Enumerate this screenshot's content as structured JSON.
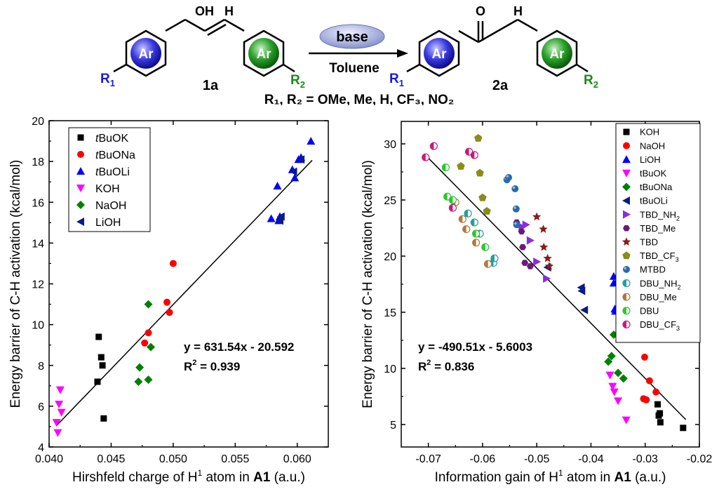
{
  "scheme": {
    "reactant_label": "1a",
    "product_label": "2a",
    "oh_label": "OH",
    "o_label": "O",
    "h_label_left": "H",
    "h_label_right": "H",
    "ring_label": "Ar",
    "r1": "R",
    "r1_sub": "1",
    "r2": "R",
    "r2_sub": "2",
    "base_label": "base",
    "solvent_label": "Toluene",
    "substituents": "R₁, R₂ = OMe, Me, H, CF₃, NO₂",
    "colors": {
      "ring_left": "#2e2edc",
      "ring_right": "#2e9a2e",
      "base_ellipse": "#9aa4d6",
      "r1": "#1a1adc",
      "r2": "#1a8a1a"
    }
  },
  "chart_data": [
    {
      "type": "scatter",
      "xlabel_main": "Hirshfeld charge of H",
      "xlabel_sup": "1",
      "xlabel_mid": " atom in ",
      "xlabel_bold": "A1",
      "xlabel_unit": " (a.u.)",
      "ylabel": "Energy barrier of C-H activation (kcal/mol)",
      "xlim": [
        0.04,
        0.0625
      ],
      "ylim": [
        4,
        20
      ],
      "xticks": [
        0.04,
        0.045,
        0.05,
        0.055,
        0.06
      ],
      "xtick_labels": [
        "0.040",
        "0.045",
        "0.050",
        "0.055",
        "0.060"
      ],
      "yticks": [
        4,
        6,
        8,
        10,
        12,
        14,
        16,
        18,
        20
      ],
      "equation": "y = 631.54x - 20.592",
      "r2_label": "R",
      "r2_value": " = 0.939",
      "fit": {
        "slope": 631.54,
        "intercept": -20.592,
        "x_range": [
          0.0406,
          0.0612
        ]
      },
      "legend_position": "top-left",
      "series": [
        {
          "name": "tBuOK",
          "label_italic": "t",
          "label_rest": "BuOK",
          "marker": "square",
          "color": "#000000",
          "points": [
            [
              0.0439,
              7.2
            ],
            [
              0.044,
              9.4
            ],
            [
              0.0442,
              8.4
            ],
            [
              0.0443,
              8.0
            ],
            [
              0.0444,
              5.4
            ]
          ]
        },
        {
          "name": "tBuONa",
          "label_italic": "t",
          "label_rest": "BuONa",
          "marker": "circle",
          "color": "#ff0000",
          "points": [
            [
              0.0477,
              9.1
            ],
            [
              0.048,
              9.6
            ],
            [
              0.0495,
              11.1
            ],
            [
              0.0497,
              10.6
            ],
            [
              0.05,
              13.0
            ]
          ]
        },
        {
          "name": "tBuOLi",
          "label_italic": "t",
          "label_rest": "BuOLi",
          "marker": "triangle-up",
          "color": "#0000ff",
          "points": [
            [
              0.0579,
              15.2
            ],
            [
              0.0584,
              16.8
            ],
            [
              0.0585,
              15.1
            ],
            [
              0.0586,
              15.3
            ],
            [
              0.0596,
              17.6
            ],
            [
              0.0598,
              17.2
            ],
            [
              0.0601,
              18.1
            ],
            [
              0.0603,
              18.2
            ],
            [
              0.0611,
              19.0
            ]
          ]
        },
        {
          "name": "KOH",
          "label_italic": "",
          "label_rest": "KOH",
          "marker": "triangle-down",
          "color": "#ff00ff",
          "points": [
            [
              0.0406,
              5.2
            ],
            [
              0.0407,
              4.7
            ],
            [
              0.0408,
              6.1
            ],
            [
              0.0409,
              6.8
            ],
            [
              0.041,
              5.7
            ]
          ]
        },
        {
          "name": "NaOH",
          "label_italic": "",
          "label_rest": "NaOH",
          "marker": "diamond",
          "color": "#008000",
          "points": [
            [
              0.0472,
              7.2
            ],
            [
              0.0473,
              7.9
            ],
            [
              0.048,
              7.3
            ],
            [
              0.048,
              11.0
            ],
            [
              0.0482,
              8.9
            ]
          ]
        },
        {
          "name": "LiOH",
          "label_italic": "",
          "label_rest": "LiOH",
          "marker": "triangle-left",
          "color": "#0a1a8c",
          "points": [
            [
              0.0586,
              15.1
            ],
            [
              0.0587,
              15.3
            ],
            [
              0.0597,
              17.5
            ],
            [
              0.0603,
              18.1
            ]
          ]
        }
      ]
    },
    {
      "type": "scatter",
      "xlabel_main": "Information gain of H",
      "xlabel_sup": "1",
      "xlabel_mid": " atom in ",
      "xlabel_bold": "A1",
      "xlabel_unit": " (a.u.)",
      "ylabel": "Energy barrier of C-H activation (kcal/mol)",
      "xlim": [
        -0.075,
        -0.02
      ],
      "ylim": [
        3,
        32
      ],
      "xticks": [
        -0.07,
        -0.06,
        -0.05,
        -0.04,
        -0.03,
        -0.02
      ],
      "xtick_labels": [
        "-0.07",
        "-0.06",
        "-0.05",
        "-0.04",
        "-0.03",
        "-0.02"
      ],
      "yticks": [
        5,
        10,
        15,
        20,
        25,
        30
      ],
      "equation": "y = -490.51x - 5.6003",
      "r2_label": "R",
      "r2_value": " = 0.836",
      "fit": {
        "slope": -490.51,
        "intercept": -5.6003,
        "x_range": [
          -0.0705,
          -0.0225
        ]
      },
      "legend_position": "top-right",
      "series": [
        {
          "name": "KOH",
          "label_main": "KOH",
          "label_sub": "",
          "marker": "square",
          "color": "#000000",
          "points": [
            [
              -0.0277,
              6.8
            ],
            [
              -0.0275,
              5.8
            ],
            [
              -0.0273,
              6.0
            ],
            [
              -0.0272,
              5.2
            ],
            [
              -0.023,
              4.7
            ]
          ]
        },
        {
          "name": "NaOH",
          "label_main": "NaOH",
          "label_sub": "",
          "marker": "circle",
          "color": "#ff0000",
          "points": [
            [
              -0.0301,
              11.0
            ],
            [
              -0.0303,
              7.3
            ],
            [
              -0.0298,
              7.2
            ],
            [
              -0.0292,
              8.9
            ],
            [
              -0.028,
              7.9
            ]
          ]
        },
        {
          "name": "LiOH",
          "label_main": "LiOH",
          "label_sub": "",
          "marker": "triangle-up",
          "color": "#0000ff",
          "points": [
            [
              -0.0358,
              18.2
            ],
            [
              -0.0358,
              17.6
            ],
            [
              -0.0356,
              15.3
            ],
            [
              -0.0355,
              15.1
            ],
            [
              -0.0352,
              17.8
            ]
          ]
        },
        {
          "name": "tBuOK",
          "label_main": "tBuOK",
          "label_sub": "",
          "marker": "triangle-down",
          "color": "#ff00ff",
          "points": [
            [
              -0.0365,
              9.4
            ],
            [
              -0.036,
              8.4
            ],
            [
              -0.0357,
              7.9
            ],
            [
              -0.035,
              7.1
            ],
            [
              -0.0335,
              5.4
            ]
          ]
        },
        {
          "name": "tBuONa",
          "label_main": "tBuONa",
          "label_sub": "",
          "marker": "diamond",
          "color": "#008000",
          "points": [
            [
              -0.0368,
              10.6
            ],
            [
              -0.0362,
              11.1
            ],
            [
              -0.0358,
              13.0
            ],
            [
              -0.035,
              9.6
            ],
            [
              -0.034,
              9.1
            ]
          ]
        },
        {
          "name": "tBuOLi",
          "label_main": "tBuOLi",
          "label_sub": "",
          "marker": "triangle-left",
          "color": "#0a1a8c",
          "points": [
            [
              -0.048,
              19.0
            ],
            [
              -0.0418,
              17.2
            ],
            [
              -0.0417,
              16.9
            ],
            [
              -0.0412,
              15.2
            ]
          ]
        },
        {
          "name": "TBD_NH2",
          "label_main": "TBD_NH",
          "label_sub": "2",
          "marker": "triangle-right",
          "color": "#8a2be2",
          "points": [
            [
              -0.0527,
              22.6
            ],
            [
              -0.052,
              22.8
            ],
            [
              -0.0512,
              21.4
            ],
            [
              -0.05,
              19.5
            ],
            [
              -0.0482,
              18.0
            ]
          ]
        },
        {
          "name": "TBD_Me",
          "label_main": "TBD_Me",
          "label_sub": "",
          "marker": "hexagon",
          "color": "#6a1a7a",
          "points": [
            [
              -0.0537,
              23.0
            ],
            [
              -0.0528,
              22.2
            ],
            [
              -0.0526,
              20.8
            ],
            [
              -0.0522,
              19.4
            ],
            [
              -0.0512,
              19.1
            ]
          ]
        },
        {
          "name": "TBD",
          "label_main": "TBD",
          "label_sub": "",
          "marker": "star",
          "color": "#8b1a1a",
          "points": [
            [
              -0.05,
              23.5
            ],
            [
              -0.0488,
              22.4
            ],
            [
              -0.0487,
              20.8
            ],
            [
              -0.048,
              19.8
            ],
            [
              -0.0477,
              19.1
            ]
          ]
        },
        {
          "name": "TBD_CF3",
          "label_main": "TBD_CF",
          "label_sub": "3",
          "marker": "pentagon",
          "color": "#8b8b1a",
          "points": [
            [
              -0.064,
              28.0
            ],
            [
              -0.0608,
              30.5
            ],
            [
              -0.0605,
              27.4
            ],
            [
              -0.06,
              25.2
            ],
            [
              -0.0592,
              24.0
            ]
          ]
        },
        {
          "name": "MTBD",
          "label_main": "MTBD",
          "label_sub": "",
          "marker": "sphere",
          "color": "#2a6aa8",
          "points": [
            [
              -0.0555,
              26.8
            ],
            [
              -0.0552,
              27.0
            ],
            [
              -0.054,
              26.0
            ],
            [
              -0.0538,
              24.2
            ],
            [
              -0.0537,
              22.8
            ]
          ]
        },
        {
          "name": "DBU_NH2",
          "label_main": "DBU_NH",
          "label_sub": "2",
          "marker": "half-circle",
          "color": "#20a0a0",
          "points": [
            [
              -0.0627,
              23.8
            ],
            [
              -0.0615,
              23.0
            ],
            [
              -0.0605,
              22.0
            ],
            [
              -0.058,
              19.4
            ],
            [
              -0.0578,
              19.8
            ]
          ]
        },
        {
          "name": "DBU_Me",
          "label_main": "DBU_Me",
          "label_sub": "",
          "marker": "half-circle",
          "color": "#b07840",
          "points": [
            [
              -0.065,
              24.8
            ],
            [
              -0.0637,
              23.3
            ],
            [
              -0.063,
              22.4
            ],
            [
              -0.0612,
              21.2
            ],
            [
              -0.059,
              19.3
            ]
          ]
        },
        {
          "name": "DBU",
          "label_main": "DBU",
          "label_sub": "",
          "marker": "half-circle",
          "color": "#2ac82a",
          "points": [
            [
              -0.0668,
              27.9
            ],
            [
              -0.0665,
              25.3
            ],
            [
              -0.0655,
              25.0
            ],
            [
              -0.0612,
              22.0
            ],
            [
              -0.0595,
              20.8
            ]
          ]
        },
        {
          "name": "DBU_CF3",
          "label_main": "DBU_CF",
          "label_sub": "3",
          "marker": "half-circle",
          "color": "#c81a7a",
          "points": [
            [
              -0.0705,
              28.8
            ],
            [
              -0.069,
              29.8
            ],
            [
              -0.0655,
              24.3
            ],
            [
              -0.0625,
              29.3
            ],
            [
              -0.0615,
              29.0
            ]
          ]
        }
      ]
    }
  ]
}
